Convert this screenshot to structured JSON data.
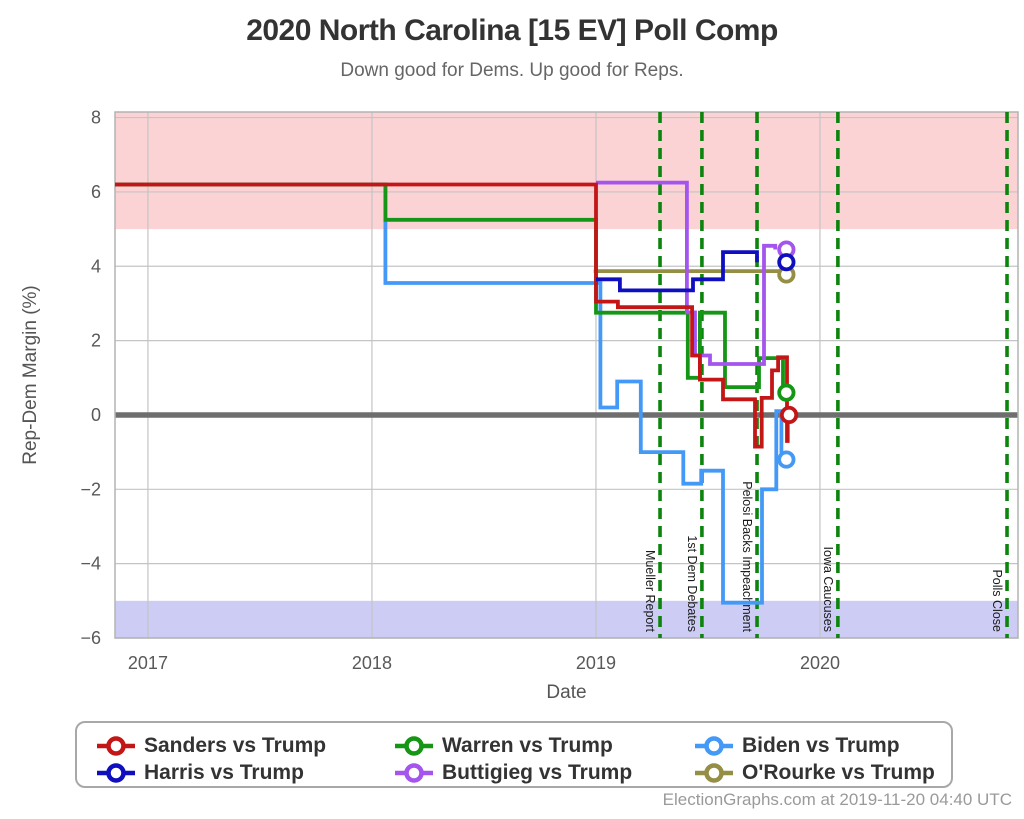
{
  "header": {
    "title": "2020 North Carolina [15 EV] Poll Comp",
    "subtitle": "Down good for Dems. Up good for Reps."
  },
  "footer": {
    "credit": "ElectionGraphs.com at 2019-11-20 04:40 UTC"
  },
  "legend": {
    "items": [
      {
        "label": "Sanders vs Trump",
        "color": "#c31717"
      },
      {
        "label": "Warren vs Trump",
        "color": "#169616"
      },
      {
        "label": "Biden vs Trump",
        "color": "#4499f7"
      },
      {
        "label": "Harris vs Trump",
        "color": "#0f0fbf"
      },
      {
        "label": "Buttigieg vs Trump",
        "color": "#a455ee"
      },
      {
        "label": "O'Rourke vs Trump",
        "color": "#958e45"
      }
    ]
  },
  "chart_data": {
    "type": "line",
    "title": "2020 North Carolina [15 EV] Poll Comp",
    "subtitle": "Down good for Dems. Up good for Reps.",
    "xlabel": "Date",
    "ylabel": "Rep-Dem Margin (%)",
    "xlim": [
      2016.853,
      2020.884
    ],
    "ylim": [
      -6,
      8.15
    ],
    "x_ticks": [
      2017,
      2018,
      2019,
      2020
    ],
    "y_ticks": [
      -6,
      -4,
      -2,
      0,
      2,
      4,
      6,
      8
    ],
    "grid": true,
    "legend_position": "bottom",
    "zero_line": 0,
    "bands": [
      {
        "name": "strong-rep-band",
        "from": 5,
        "to": 8.15,
        "color": "#fbd3d5"
      },
      {
        "name": "strong-dem-band",
        "from": -6,
        "to": -5,
        "color": "#ccccf5"
      }
    ],
    "events": [
      {
        "label": "Mueller Report",
        "x": 2019.286
      },
      {
        "label": "1st Dem Debates",
        "x": 2019.473
      },
      {
        "label": "Pelosi Backs Impeachment",
        "x": 2019.719
      },
      {
        "label": "Iowa Caucuses",
        "x": 2020.08
      },
      {
        "label": "Polls Close",
        "x": 2020.835
      }
    ],
    "event_line_color": "#0d840d",
    "series": [
      {
        "name": "Biden vs Trump",
        "color": "#4499f7",
        "points": [
          [
            2016.853,
            6.2
          ],
          [
            2018.06,
            6.2
          ],
          [
            2018.06,
            3.55
          ],
          [
            2019.02,
            3.55
          ],
          [
            2019.02,
            0.2
          ],
          [
            2019.095,
            0.2
          ],
          [
            2019.095,
            0.9
          ],
          [
            2019.2,
            0.9
          ],
          [
            2019.2,
            -1.0
          ],
          [
            2019.39,
            -1.0
          ],
          [
            2019.39,
            -1.85
          ],
          [
            2019.47,
            -1.85
          ],
          [
            2019.47,
            -1.5
          ],
          [
            2019.567,
            -1.5
          ],
          [
            2019.567,
            -5.05
          ],
          [
            2019.741,
            -5.05
          ],
          [
            2019.741,
            -2.0
          ],
          [
            2019.805,
            -2.0
          ],
          [
            2019.805,
            0.1
          ],
          [
            2019.828,
            0.1
          ],
          [
            2019.828,
            -1.2
          ]
        ],
        "end": [
          2019.85,
          -1.2
        ]
      },
      {
        "name": "O'Rourke vs Trump",
        "color": "#958e45",
        "points": [
          [
            2018.99,
            3.87
          ],
          [
            2019.82,
            3.87
          ],
          [
            2019.82,
            3.78
          ]
        ],
        "end": [
          2019.85,
          3.78
        ]
      },
      {
        "name": "Warren vs Trump",
        "color": "#169616",
        "points": [
          [
            2016.853,
            6.2
          ],
          [
            2018.06,
            6.2
          ],
          [
            2018.06,
            5.25
          ],
          [
            2019.0,
            5.25
          ],
          [
            2019.0,
            2.75
          ],
          [
            2019.41,
            2.75
          ],
          [
            2019.41,
            1.0
          ],
          [
            2019.464,
            1.0
          ],
          [
            2019.464,
            2.75
          ],
          [
            2019.576,
            2.75
          ],
          [
            2019.576,
            0.75
          ],
          [
            2019.728,
            0.75
          ],
          [
            2019.728,
            1.53
          ],
          [
            2019.835,
            1.53
          ],
          [
            2019.835,
            0.6
          ]
        ],
        "end": [
          2019.85,
          0.6
        ]
      },
      {
        "name": "Buttigieg vs Trump",
        "color": "#a455ee",
        "points": [
          [
            2019.0,
            6.25
          ],
          [
            2019.406,
            6.25
          ],
          [
            2019.406,
            2.76
          ],
          [
            2019.442,
            2.76
          ],
          [
            2019.442,
            1.6
          ],
          [
            2019.509,
            1.6
          ],
          [
            2019.509,
            1.37
          ],
          [
            2019.75,
            1.37
          ],
          [
            2019.75,
            4.55
          ],
          [
            2019.8,
            4.55
          ],
          [
            2019.8,
            4.45
          ]
        ],
        "end": [
          2019.85,
          4.45
        ]
      },
      {
        "name": "Sanders vs Trump",
        "color": "#c31717",
        "points": [
          [
            2016.853,
            6.2
          ],
          [
            2019.0,
            6.2
          ],
          [
            2019.0,
            3.05
          ],
          [
            2019.098,
            3.05
          ],
          [
            2019.098,
            2.9
          ],
          [
            2019.429,
            2.9
          ],
          [
            2019.429,
            1.6
          ],
          [
            2019.464,
            1.6
          ],
          [
            2019.464,
            0.95
          ],
          [
            2019.567,
            0.95
          ],
          [
            2019.567,
            0.42
          ],
          [
            2019.71,
            0.42
          ],
          [
            2019.71,
            -0.85
          ],
          [
            2019.74,
            -0.85
          ],
          [
            2019.74,
            0.46
          ],
          [
            2019.786,
            0.46
          ],
          [
            2019.786,
            1.2
          ],
          [
            2019.813,
            1.2
          ],
          [
            2019.813,
            1.55
          ],
          [
            2019.853,
            1.55
          ],
          [
            2019.853,
            -0.7
          ],
          [
            2019.856,
            -0.7
          ],
          [
            2019.856,
            0.0
          ]
        ],
        "end": [
          2019.862,
          0.0
        ]
      },
      {
        "name": "Harris vs Trump",
        "color": "#0f0fbf",
        "points": [
          [
            2019.0,
            3.65
          ],
          [
            2019.107,
            3.65
          ],
          [
            2019.107,
            3.35
          ],
          [
            2019.433,
            3.35
          ],
          [
            2019.433,
            3.65
          ],
          [
            2019.567,
            3.65
          ],
          [
            2019.567,
            4.38
          ],
          [
            2019.719,
            4.38
          ],
          [
            2019.719,
            4.11
          ]
        ],
        "end": [
          2019.85,
          4.11
        ]
      }
    ]
  }
}
